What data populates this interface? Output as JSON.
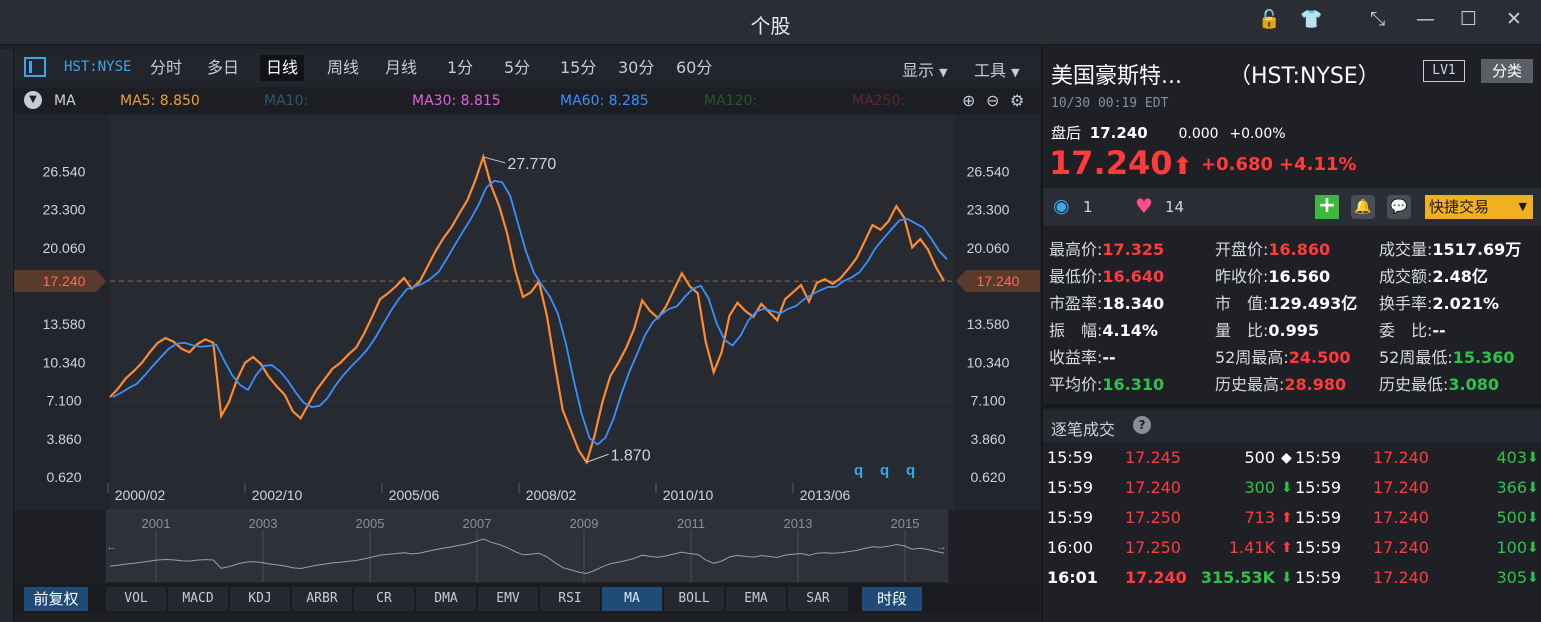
{
  "window": {
    "title": "个股",
    "icons": [
      "unlock-icon",
      "shirt-icon",
      "collapse-icon",
      "minimize-icon",
      "maximize-icon",
      "close-icon"
    ]
  },
  "toolbar": {
    "code": "HST:NYSE",
    "periods": [
      "分时",
      "多日",
      "日线",
      "周线",
      "月线",
      "1分",
      "5分",
      "15分",
      "30分",
      "60分"
    ],
    "active_period": "日线",
    "display": "显示",
    "tools": "工具"
  },
  "ma": {
    "label": "MA",
    "items": [
      {
        "text": "MA5: 8.850",
        "color": "#f0a030"
      },
      {
        "text": "MA10:",
        "color": "#2a5a6e"
      },
      {
        "text": "MA30: 8.815",
        "color": "#e060e0"
      },
      {
        "text": "MA60: 8.285",
        "color": "#3a90ff"
      },
      {
        "text": "MA120:",
        "color": "#1f5a2a"
      },
      {
        "text": "MA250:",
        "color": "#5a2a2a"
      }
    ]
  },
  "chart_data": {
    "type": "line",
    "x_labels": [
      "2000/02",
      "2002/10",
      "2005/06",
      "2008/02",
      "2010/10",
      "2013/06"
    ],
    "y_ticks": [
      "26.540",
      "23.300",
      "20.060",
      "17.240",
      "13.580",
      "10.340",
      "7.100",
      "3.860",
      "0.620"
    ],
    "y_tick_values": [
      26.54,
      23.3,
      20.06,
      17.24,
      13.58,
      10.34,
      7.1,
      3.86,
      0.62
    ],
    "ylim": [
      0.62,
      29.8
    ],
    "current_price_label": "17.240",
    "current_price": 17.24,
    "high_label": "27.770",
    "low_label": "1.870",
    "markers": [
      "q",
      "q",
      "q"
    ],
    "colors": {
      "price": "#ff8a30",
      "ma": "#3a90ff",
      "dash": "#8a6a50"
    },
    "series": [
      {
        "values": [
          7.4,
          8.1,
          9.0,
          9.6,
          10.3,
          11.2,
          12.0,
          12.4,
          12.1,
          11.5,
          11.2,
          11.9,
          12.3,
          12.0,
          5.8,
          7.0,
          8.9,
          10.3,
          10.8,
          10.2,
          9.1,
          8.3,
          7.6,
          6.2,
          5.6,
          6.8,
          8.0,
          8.9,
          9.8,
          10.3,
          11.0,
          11.6,
          12.8,
          14.2,
          15.7,
          16.2,
          16.8,
          17.5,
          16.6,
          17.2,
          18.5,
          19.8,
          20.9,
          21.8,
          23.0,
          24.1,
          25.8,
          27.77,
          25.3,
          23.6,
          21.3,
          18.2,
          15.9,
          16.3,
          17.2,
          14.3,
          10.2,
          6.3,
          4.6,
          2.9,
          1.87,
          4.1,
          7.0,
          9.2,
          10.3,
          11.6,
          13.2,
          15.6,
          14.7,
          14.1,
          15.1,
          16.5,
          17.9,
          16.8,
          16.2,
          12.1,
          9.5,
          11.2,
          14.3,
          15.4,
          14.7,
          14.2,
          15.3,
          14.6,
          13.9,
          15.7,
          16.3,
          16.9,
          15.5,
          17.1,
          17.4,
          17.0,
          17.5,
          18.3,
          19.2,
          20.6,
          22.0,
          21.6,
          22.3,
          23.6,
          22.6,
          20.1,
          20.8,
          19.9,
          18.4,
          17.24
        ]
      }
    ],
    "mini_chart": {
      "years": [
        "2001",
        "2003",
        "2005",
        "2007",
        "2009",
        "2011",
        "2013",
        "2015"
      ]
    }
  },
  "indicators": {
    "restore": "前复权",
    "items": [
      "VOL",
      "MACD",
      "KDJ",
      "ARBR",
      "CR",
      "DMA",
      "EMV",
      "RSI",
      "MA",
      "BOLL",
      "EMA",
      "SAR"
    ],
    "active": "MA",
    "period": "时段"
  },
  "quote": {
    "name": "美国豪斯特...",
    "code": "（HST:NYSE）",
    "level": "LV1",
    "category": "分类",
    "datetime": "10/30 00:19 EDT",
    "after_hours_label": "盘后",
    "after_hours_price": "17.240",
    "after_hours_change": "0.000",
    "after_hours_pct": "+0.00%",
    "price": "17.240",
    "change": "+0.680",
    "change_pct": "+4.11%",
    "watchers": "1",
    "likes": "14",
    "trade_button": "快捷交易",
    "colors": {
      "up": "#ff3b3b",
      "down": "#2fc24a",
      "accent": "#3aa8e8",
      "trade": "#f0b020"
    }
  },
  "stats": [
    [
      {
        "label": "最高价:",
        "value": "17.325",
        "color": "red"
      },
      {
        "label": "开盘价:",
        "value": "16.860",
        "color": "red"
      },
      {
        "label": "成交量:",
        "value": "1517.69万",
        "color": "white"
      }
    ],
    [
      {
        "label": "最低价:",
        "value": "16.640",
        "color": "red"
      },
      {
        "label": "昨收价:",
        "value": "16.560",
        "color": "white"
      },
      {
        "label": "成交额:",
        "value": "2.48亿",
        "color": "white"
      }
    ],
    [
      {
        "label": "市盈率:",
        "value": "18.340",
        "color": "white"
      },
      {
        "label": "市　值:",
        "value": "129.493亿",
        "color": "white"
      },
      {
        "label": "换手率:",
        "value": "2.021%",
        "color": "white"
      }
    ],
    [
      {
        "label": "振　幅:",
        "value": "4.14%",
        "color": "white"
      },
      {
        "label": "量　比:",
        "value": "0.995",
        "color": "white"
      },
      {
        "label": "委　比:",
        "value": "--",
        "color": "white"
      }
    ],
    [
      {
        "label": "收益率:",
        "value": "--",
        "color": "white"
      },
      {
        "label": "52周最高:",
        "value": "24.500",
        "color": "red"
      },
      {
        "label": "52周最低:",
        "value": "15.360",
        "color": "green"
      }
    ],
    [
      {
        "label": "平均价:",
        "value": "16.310",
        "color": "green"
      },
      {
        "label": "历史最高:",
        "value": "28.980",
        "color": "red"
      },
      {
        "label": "历史最低:",
        "value": "3.080",
        "color": "green"
      }
    ]
  ],
  "ticks": {
    "title": "逐笔成交",
    "rows": [
      {
        "t1": "15:59",
        "p1": "17.245",
        "v1": "500",
        "d1": "◆",
        "c1": "white",
        "t2": "15:59",
        "p2": "17.240",
        "v2": "403",
        "d2": "⬇",
        "c2": "green"
      },
      {
        "t1": "15:59",
        "p1": "17.240",
        "v1": "300",
        "d1": "⬇",
        "c1": "green",
        "t2": "15:59",
        "p2": "17.240",
        "v2": "366",
        "d2": "⬇",
        "c2": "green"
      },
      {
        "t1": "15:59",
        "p1": "17.250",
        "v1": "713",
        "d1": "⬆",
        "c1": "red",
        "t2": "15:59",
        "p2": "17.240",
        "v2": "500",
        "d2": "⬇",
        "c2": "green"
      },
      {
        "t1": "16:00",
        "p1": "17.250",
        "v1": "1.41K",
        "d1": "⬆",
        "c1": "red",
        "t2": "15:59",
        "p2": "17.240",
        "v2": "100",
        "d2": "⬇",
        "c2": "green"
      },
      {
        "t1": "16:01",
        "p1": "17.240",
        "v1": "315.53K",
        "d1": "⬇",
        "c1": "green",
        "t2": "15:59",
        "p2": "17.240",
        "v2": "305",
        "d2": "⬇",
        "c2": "green"
      }
    ]
  }
}
